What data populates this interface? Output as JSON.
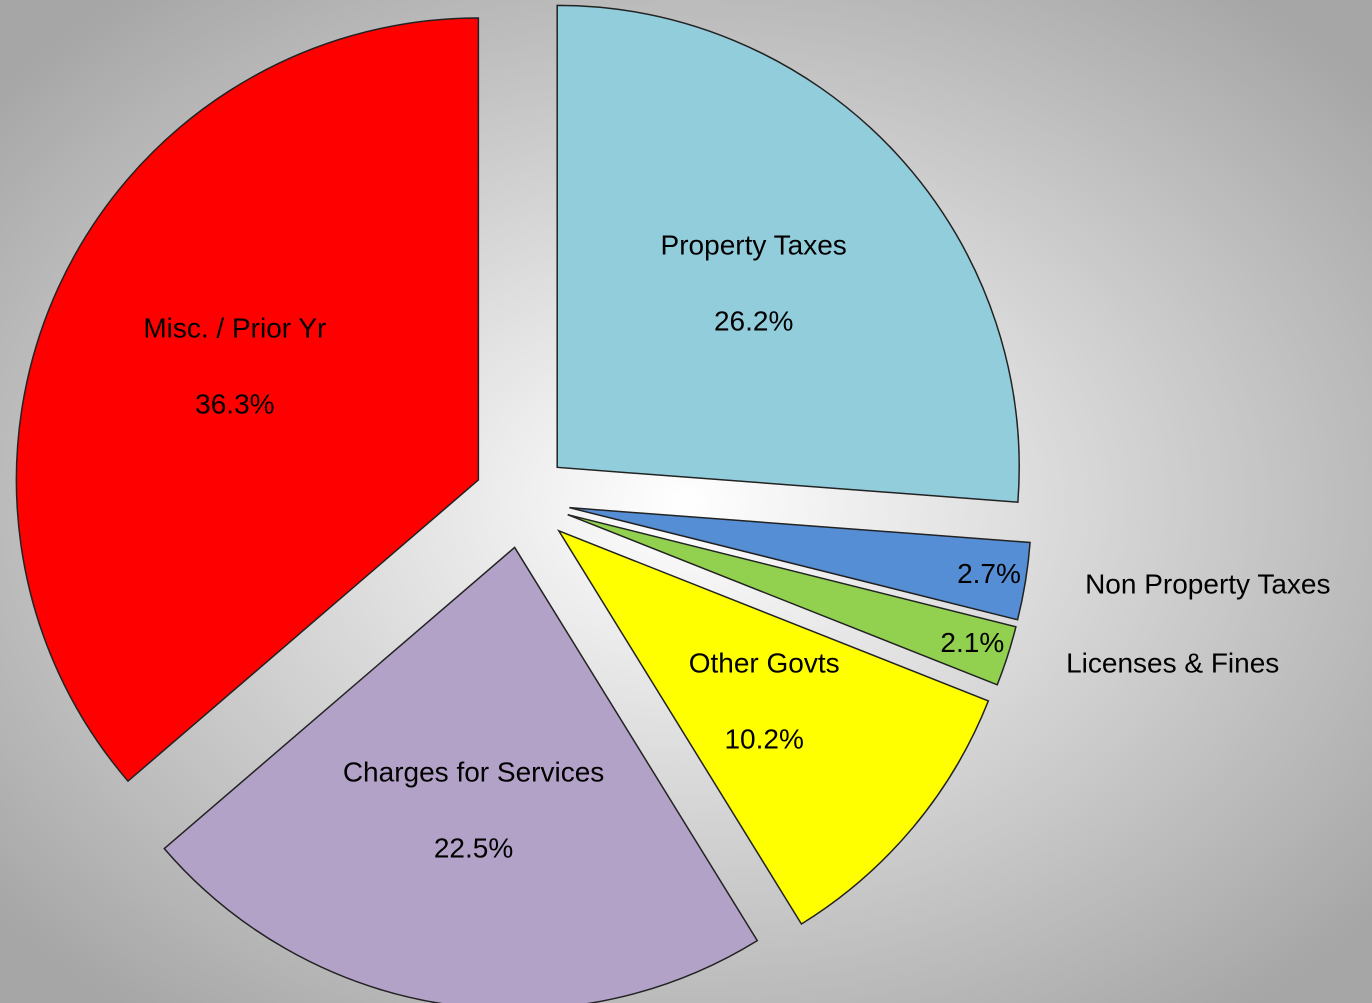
{
  "chart_data": {
    "type": "pie",
    "categories": [
      "Property Taxes",
      "Non Property Taxes",
      "Licenses & Fines",
      "Other Govts",
      "Charges for Services",
      "Misc. / Prior Yr"
    ],
    "values": [
      26.2,
      2.7,
      2.1,
      10.2,
      22.5,
      36.3
    ],
    "value_labels": [
      "26.2%",
      "2.7%",
      "2.1%",
      "10.2%",
      "22.5%",
      "36.3%"
    ],
    "colors": [
      "#92cddc",
      "#558ed5",
      "#92d050",
      "#ffff00",
      "#b3a2c7",
      "#ff0000"
    ]
  }
}
